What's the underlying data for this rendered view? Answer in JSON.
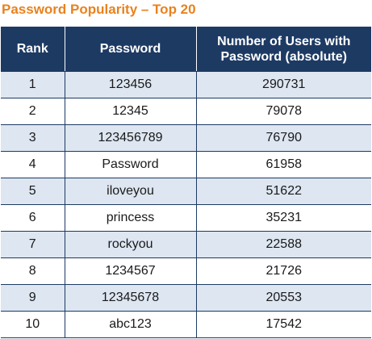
{
  "title": "Password Popularity – Top 20",
  "table": {
    "headers": [
      "Rank",
      "Password",
      "Number of Users with Password (absolute)"
    ],
    "rows": [
      [
        "1",
        "123456",
        "290731"
      ],
      [
        "2",
        "12345",
        "79078"
      ],
      [
        "3",
        "123456789",
        "76790"
      ],
      [
        "4",
        "Password",
        "61958"
      ],
      [
        "5",
        "iloveyou",
        "51622"
      ],
      [
        "6",
        "princess",
        "35231"
      ],
      [
        "7",
        "rockyou",
        "22588"
      ],
      [
        "8",
        "1234567",
        "21726"
      ],
      [
        "9",
        "12345678",
        "20553"
      ],
      [
        "10",
        "abc123",
        "17542"
      ]
    ]
  },
  "colors": {
    "title": "#e8821e",
    "header_bg": "#1d3a63",
    "header_text": "#ffffff",
    "row_shaded": "#dde6f1",
    "row_plain": "#ffffff"
  }
}
